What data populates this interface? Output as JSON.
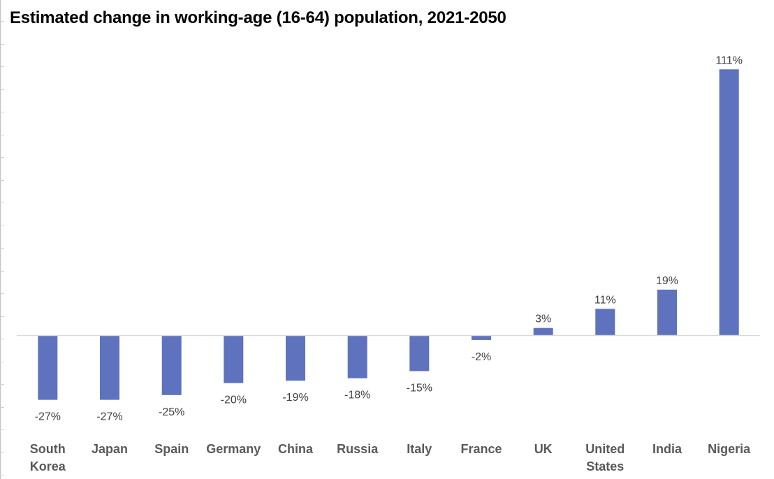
{
  "chart_data": {
    "type": "bar",
    "title": "Estimated change in working-age (16-64) population, 2021-2050",
    "xlabel": "",
    "ylabel": "",
    "categories": [
      "South Korea",
      "Japan",
      "Spain",
      "Germany",
      "China",
      "Russia",
      "Italy",
      "France",
      "UK",
      "United States",
      "India",
      "Nigeria"
    ],
    "category_lines": [
      [
        "South",
        "Korea"
      ],
      [
        "Japan"
      ],
      [
        "Spain"
      ],
      [
        "Germany"
      ],
      [
        "China"
      ],
      [
        "Russia"
      ],
      [
        "Italy"
      ],
      [
        "France"
      ],
      [
        "UK"
      ],
      [
        "United",
        "States"
      ],
      [
        "India"
      ],
      [
        "Nigeria"
      ]
    ],
    "values": [
      -27,
      -27,
      -25,
      -20,
      -19,
      -18,
      -15,
      -2,
      3,
      11,
      19,
      111
    ],
    "data_labels": [
      "-27%",
      "-27%",
      "-25%",
      "-20%",
      "-19%",
      "-18%",
      "-15%",
      "-2%",
      "3%",
      "11%",
      "19%",
      "111%"
    ],
    "unit": "%",
    "ylim": [
      -40,
      120
    ],
    "grid": false,
    "bar_color": "#5E72BE",
    "axis_color": "#d9d9d9"
  }
}
